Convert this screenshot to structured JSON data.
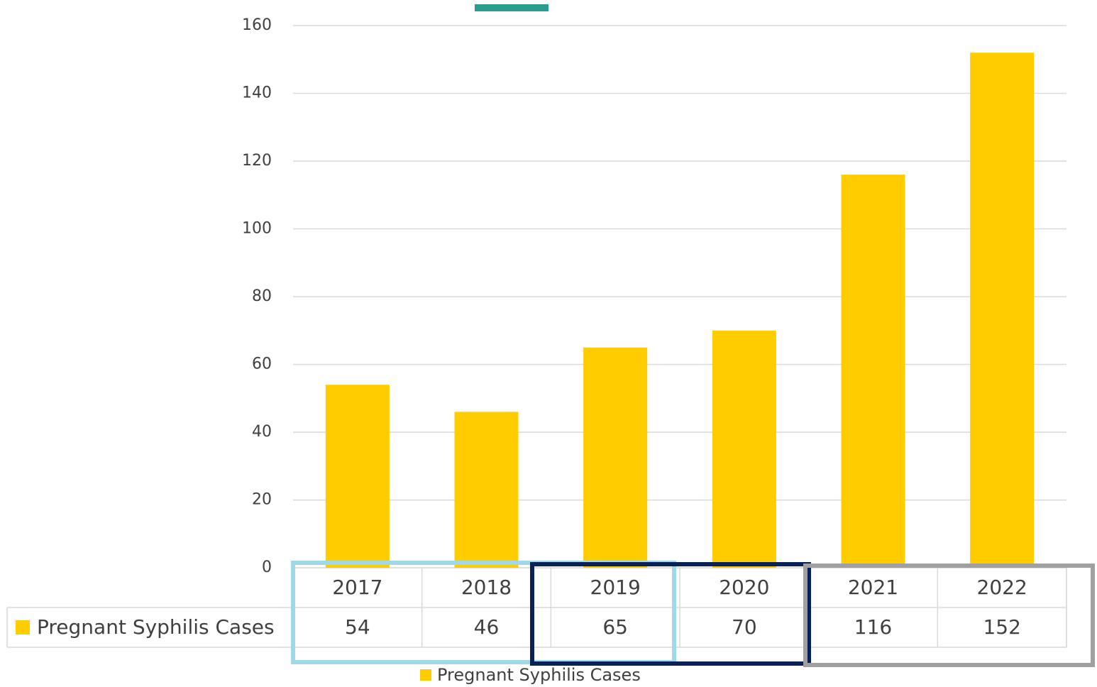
{
  "chart_data": {
    "type": "bar",
    "categories": [
      "2017",
      "2018",
      "2019",
      "2020",
      "2021",
      "2022"
    ],
    "series": [
      {
        "name": "Pregnant Syphilis Cases",
        "color": "#ffcc00",
        "values": [
          54,
          46,
          65,
          70,
          116,
          152
        ]
      }
    ],
    "ylim": [
      0,
      160
    ],
    "yticks": [
      0,
      20,
      40,
      60,
      80,
      100,
      120,
      140,
      160
    ],
    "grid": true,
    "data_table": true,
    "legend": "bottom"
  }
}
